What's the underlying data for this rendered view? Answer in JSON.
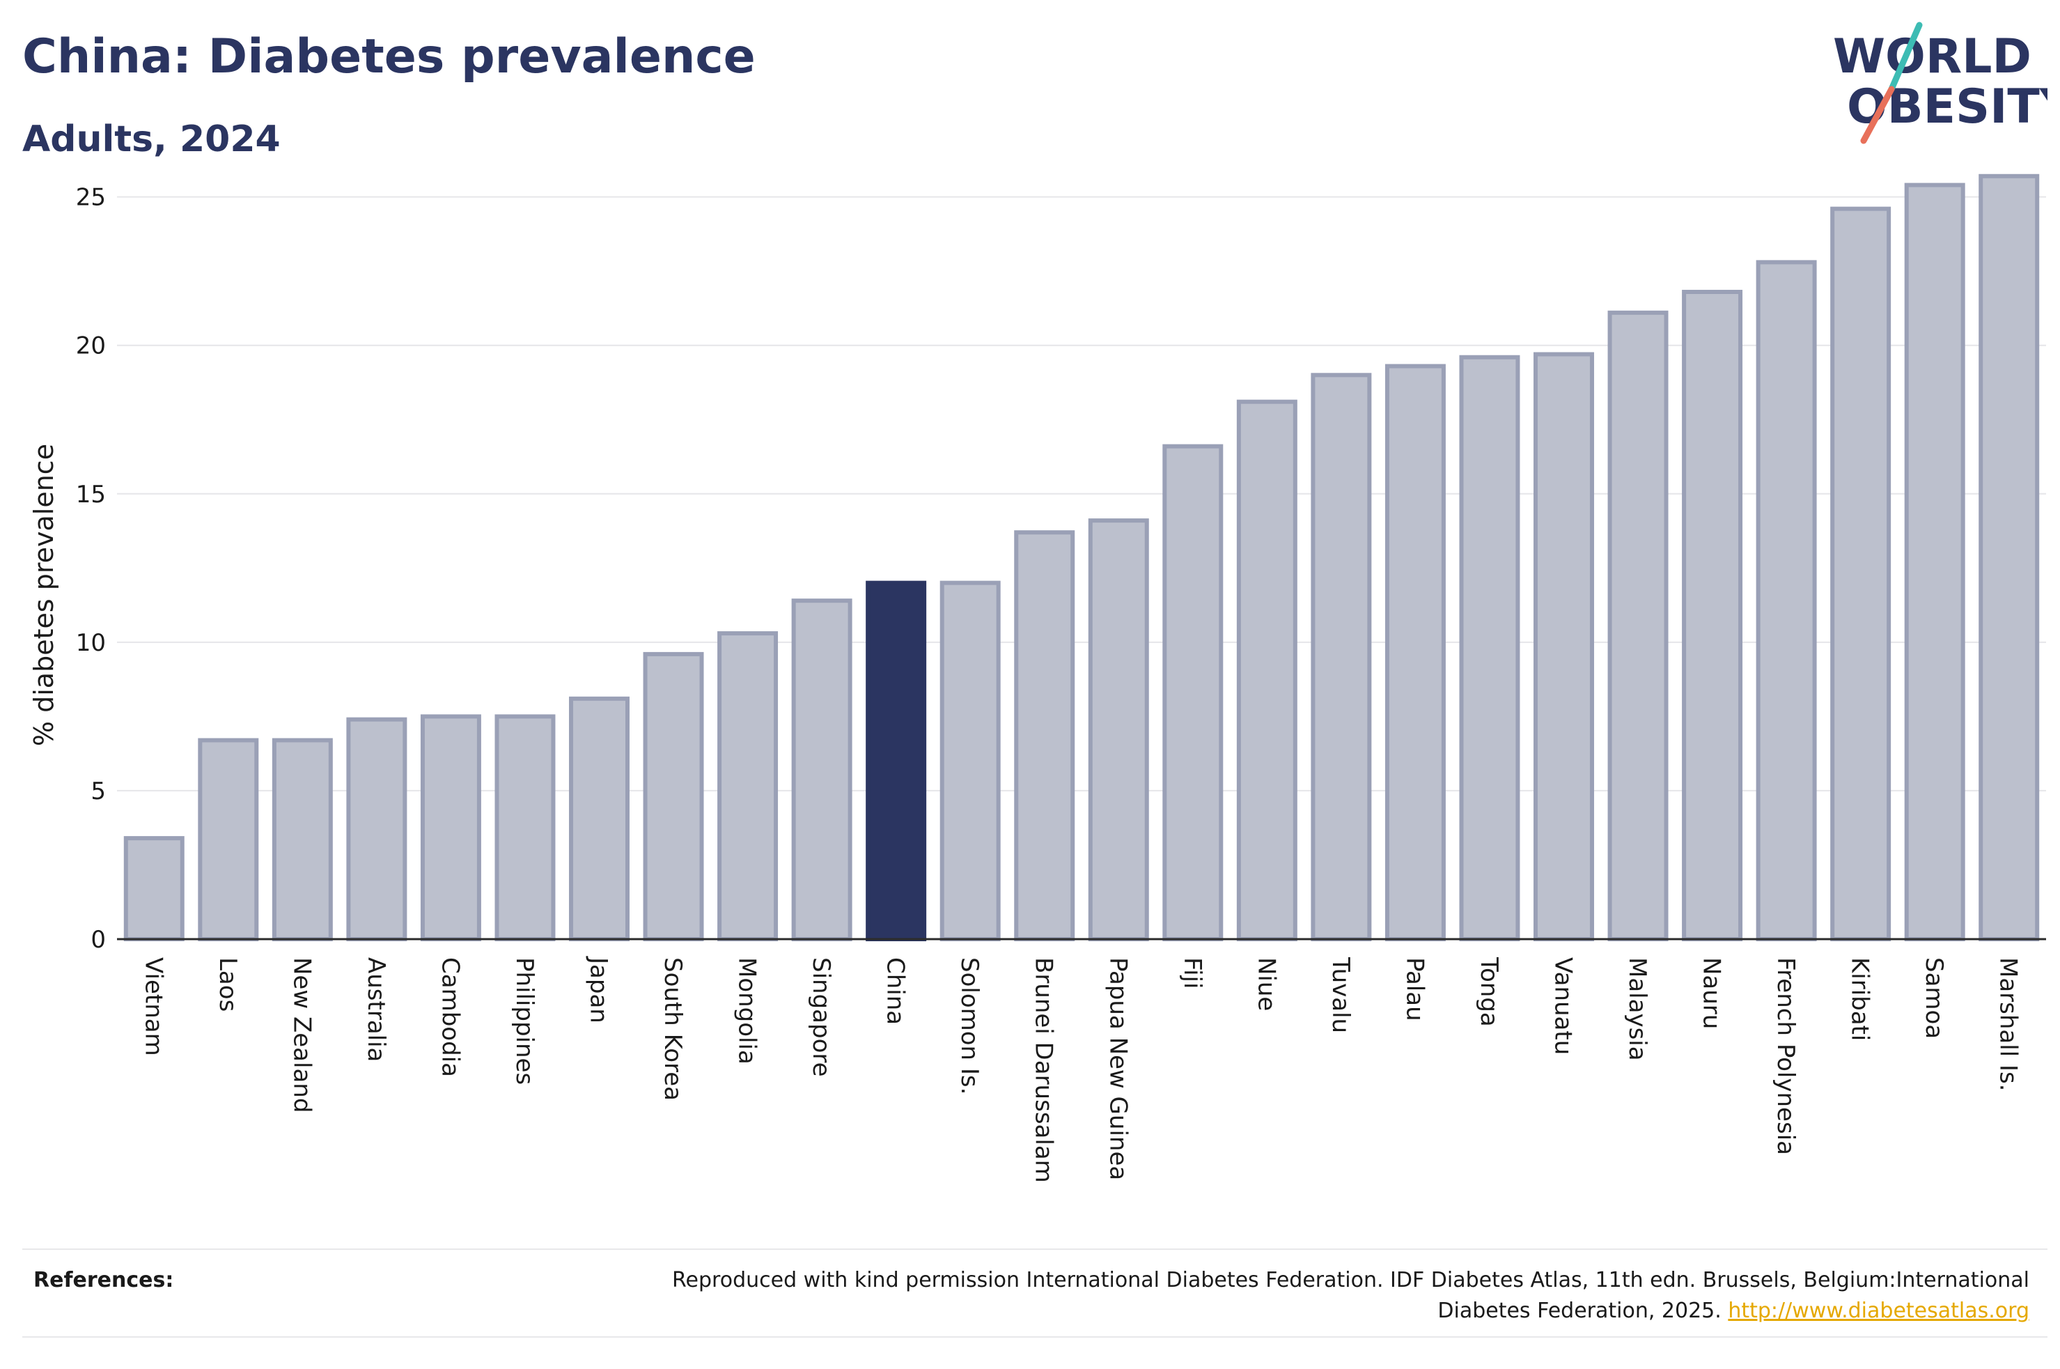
{
  "header": {
    "title": "China: Diabetes prevalence",
    "subtitle": "Adults, 2024"
  },
  "logo": {
    "line1": "WORLD",
    "line2": "OBESITY",
    "colors": {
      "text": "#2b3561",
      "slash_top": "#3dbcb4",
      "slash_bottom": "#e8705a"
    }
  },
  "chart_data": {
    "type": "bar",
    "title": "China: Diabetes prevalence",
    "subtitle": "Adults, 2024",
    "xlabel": "",
    "ylabel": "% diabetes prevalence",
    "ylim": [
      0,
      26
    ],
    "yticks": [
      0,
      5,
      10,
      15,
      20,
      25
    ],
    "grid": true,
    "highlight": "China",
    "colors": {
      "bar": "#bcc0cd",
      "bar_border": "#9aa0b6",
      "highlight": "#2b3561",
      "grid": "#e6e6e9",
      "axis": "#2b2b2b"
    },
    "categories": [
      "Vietnam",
      "Laos",
      "New Zealand",
      "Australia",
      "Cambodia",
      "Philippines",
      "Japan",
      "South Korea",
      "Mongolia",
      "Singapore",
      "China",
      "Solomon Is.",
      "Brunei Darussalam",
      "Papua New Guinea",
      "Fiji",
      "Niue",
      "Tuvalu",
      "Palau",
      "Tonga",
      "Vanuatu",
      "Malaysia",
      "Nauru",
      "French Polynesia",
      "Kiribati",
      "Samoa",
      "Marshall Is."
    ],
    "values": [
      3.4,
      6.7,
      6.7,
      7.4,
      7.5,
      7.5,
      8.1,
      9.6,
      10.3,
      11.4,
      12.0,
      12.0,
      13.7,
      14.1,
      16.6,
      18.1,
      19.0,
      19.3,
      19.6,
      19.7,
      21.1,
      21.8,
      22.8,
      24.6,
      25.4,
      25.7
    ]
  },
  "footer": {
    "references_label": "References:",
    "reference_text_1": "Reproduced with kind permission International Diabetes Federation. IDF Diabetes Atlas, 11th edn. Brussels, Belgium:International",
    "reference_text_2": "Diabetes Federation, 2025. ",
    "reference_link": "http://www.diabetesatlas.org"
  }
}
